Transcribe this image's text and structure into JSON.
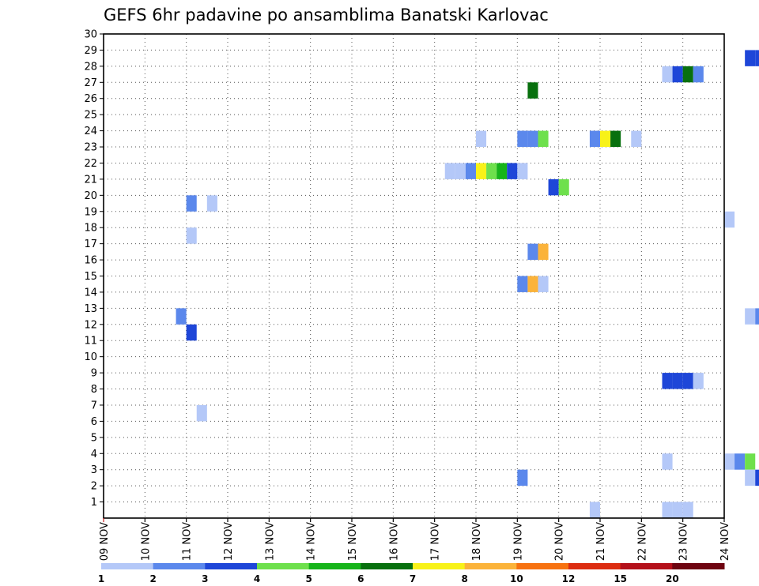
{
  "chart_data": {
    "type": "heatmap",
    "title": "GEFS 6hr padavine po ansamblima Banatski Karlovac",
    "xlabel": "",
    "ylabel": "",
    "x_range_days": [
      0,
      15
    ],
    "x_step": 0.25,
    "y_range": [
      0,
      30
    ],
    "x_tick_labels": [
      "09 NOV",
      "10 NOV",
      "11 NOV",
      "12 NOV",
      "13 NOV",
      "14 NOV",
      "15 NOV",
      "16 NOV",
      "17 NOV",
      "18 NOV",
      "19 NOV",
      "20 NOV",
      "21 NOV",
      "22 NOV",
      "23 NOV",
      "24 NOV"
    ],
    "y_tick_labels": [
      "1",
      "2",
      "3",
      "4",
      "5",
      "6",
      "7",
      "8",
      "9",
      "10",
      "11",
      "12",
      "13",
      "14",
      "15",
      "16",
      "17",
      "18",
      "19",
      "20",
      "21",
      "22",
      "23",
      "24",
      "25",
      "26",
      "27",
      "28",
      "29",
      "30"
    ],
    "grid": true,
    "colorbar": {
      "colors": [
        "#b4c8f8",
        "#5b88ec",
        "#1e46d8",
        "#6ee04c",
        "#16b41a",
        "#08700e",
        "#f8f218",
        "#fbb33a",
        "#f77210",
        "#dc2c10",
        "#b4101a",
        "#6e0410"
      ],
      "labels": [
        "1",
        "2",
        "3",
        "4",
        "5",
        "6",
        "7",
        "8",
        "10",
        "12",
        "15",
        "20"
      ]
    },
    "cells_format": "[x_start_day, member, value_mm]",
    "cells": [
      [
        15.5,
        29,
        3
      ],
      [
        15.75,
        29,
        3
      ],
      [
        16.0,
        29,
        1
      ],
      [
        13.5,
        28,
        1
      ],
      [
        13.75,
        28,
        3
      ],
      [
        14.0,
        28,
        6
      ],
      [
        14.25,
        28,
        2
      ],
      [
        10.25,
        27,
        6
      ],
      [
        9.0,
        24,
        1
      ],
      [
        10.0,
        24,
        2
      ],
      [
        10.25,
        24,
        2
      ],
      [
        10.5,
        24,
        4
      ],
      [
        11.75,
        24,
        2
      ],
      [
        12.0,
        24,
        7
      ],
      [
        12.25,
        24,
        6
      ],
      [
        12.75,
        24,
        1
      ],
      [
        8.25,
        22,
        1
      ],
      [
        8.5,
        22,
        1
      ],
      [
        8.75,
        22,
        2
      ],
      [
        9.0,
        22,
        7
      ],
      [
        9.25,
        22,
        4
      ],
      [
        9.5,
        22,
        5
      ],
      [
        9.75,
        22,
        3
      ],
      [
        10.0,
        22,
        1
      ],
      [
        10.75,
        21,
        3
      ],
      [
        11.0,
        21,
        4
      ],
      [
        2.0,
        20,
        2
      ],
      [
        2.5,
        20,
        1
      ],
      [
        15.0,
        19,
        1
      ],
      [
        2.0,
        18,
        1
      ],
      [
        10.25,
        17,
        2
      ],
      [
        10.5,
        17,
        8
      ],
      [
        10.0,
        15,
        2
      ],
      [
        10.25,
        15,
        8
      ],
      [
        10.5,
        15,
        1
      ],
      [
        1.75,
        13,
        2
      ],
      [
        15.5,
        13,
        1
      ],
      [
        15.75,
        13,
        2
      ],
      [
        2.0,
        12,
        3
      ],
      [
        13.5,
        9,
        3
      ],
      [
        13.75,
        9,
        3
      ],
      [
        14.0,
        9,
        3
      ],
      [
        14.25,
        9,
        1
      ],
      [
        2.25,
        7,
        1
      ],
      [
        13.5,
        4,
        1
      ],
      [
        15.0,
        4,
        1
      ],
      [
        15.25,
        4,
        2
      ],
      [
        15.5,
        4,
        4
      ],
      [
        10.0,
        3,
        2
      ],
      [
        15.5,
        3,
        1
      ],
      [
        15.75,
        3,
        3
      ],
      [
        11.75,
        1,
        1
      ],
      [
        13.5,
        1,
        1
      ],
      [
        13.75,
        1,
        1
      ],
      [
        14.0,
        1,
        1
      ]
    ]
  }
}
